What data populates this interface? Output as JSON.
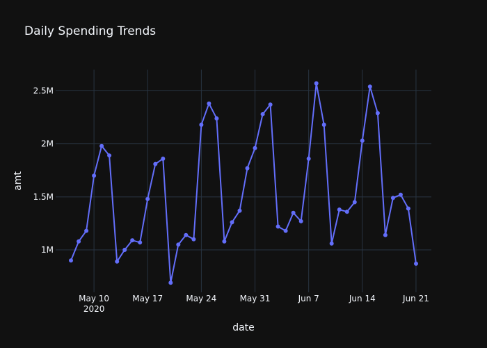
{
  "chart_data": {
    "type": "line",
    "title": "Daily Spending Trends",
    "xlabel": "date",
    "ylabel": "amt",
    "xlim": [
      "2020-05-05",
      "2020-06-23"
    ],
    "ylim": [
      600000,
      2700000
    ],
    "x_ticks": [
      {
        "date": "2020-05-10",
        "label": "May 10",
        "sublabel": "2020"
      },
      {
        "date": "2020-05-17",
        "label": "May 17"
      },
      {
        "date": "2020-05-24",
        "label": "May 24"
      },
      {
        "date": "2020-05-31",
        "label": "May 31"
      },
      {
        "date": "2020-06-07",
        "label": "Jun 7"
      },
      {
        "date": "2020-06-14",
        "label": "Jun 14"
      },
      {
        "date": "2020-06-21",
        "label": "Jun 21"
      }
    ],
    "y_ticks": [
      {
        "value": 1000000,
        "label": "1M"
      },
      {
        "value": 1500000,
        "label": "1.5M"
      },
      {
        "value": 2000000,
        "label": "2M"
      },
      {
        "value": 2500000,
        "label": "2.5M"
      }
    ],
    "series": [
      {
        "name": "amt",
        "color": "#636efa",
        "x": [
          "2020-05-07",
          "2020-05-08",
          "2020-05-09",
          "2020-05-10",
          "2020-05-11",
          "2020-05-12",
          "2020-05-13",
          "2020-05-14",
          "2020-05-15",
          "2020-05-16",
          "2020-05-17",
          "2020-05-18",
          "2020-05-19",
          "2020-05-20",
          "2020-05-21",
          "2020-05-22",
          "2020-05-23",
          "2020-05-24",
          "2020-05-25",
          "2020-05-26",
          "2020-05-27",
          "2020-05-28",
          "2020-05-29",
          "2020-05-30",
          "2020-05-31",
          "2020-06-01",
          "2020-06-02",
          "2020-06-03",
          "2020-06-04",
          "2020-06-05",
          "2020-06-06",
          "2020-06-07",
          "2020-06-08",
          "2020-06-09",
          "2020-06-10",
          "2020-06-11",
          "2020-06-12",
          "2020-06-13",
          "2020-06-14",
          "2020-06-15",
          "2020-06-16",
          "2020-06-17",
          "2020-06-18",
          "2020-06-19",
          "2020-06-20",
          "2020-06-21"
        ],
        "values": [
          900000,
          1080000,
          1180000,
          1700000,
          1980000,
          1890000,
          890000,
          1000000,
          1090000,
          1070000,
          1480000,
          1810000,
          1860000,
          690000,
          1050000,
          1140000,
          1100000,
          2180000,
          2380000,
          2240000,
          1080000,
          1260000,
          1370000,
          1770000,
          1960000,
          2280000,
          2370000,
          1220000,
          1180000,
          1350000,
          1270000,
          1860000,
          2570000,
          2180000,
          1060000,
          1380000,
          1360000,
          1450000,
          2030000,
          2540000,
          2290000,
          1140000,
          1490000,
          1520000,
          1390000,
          870000
        ]
      }
    ]
  }
}
